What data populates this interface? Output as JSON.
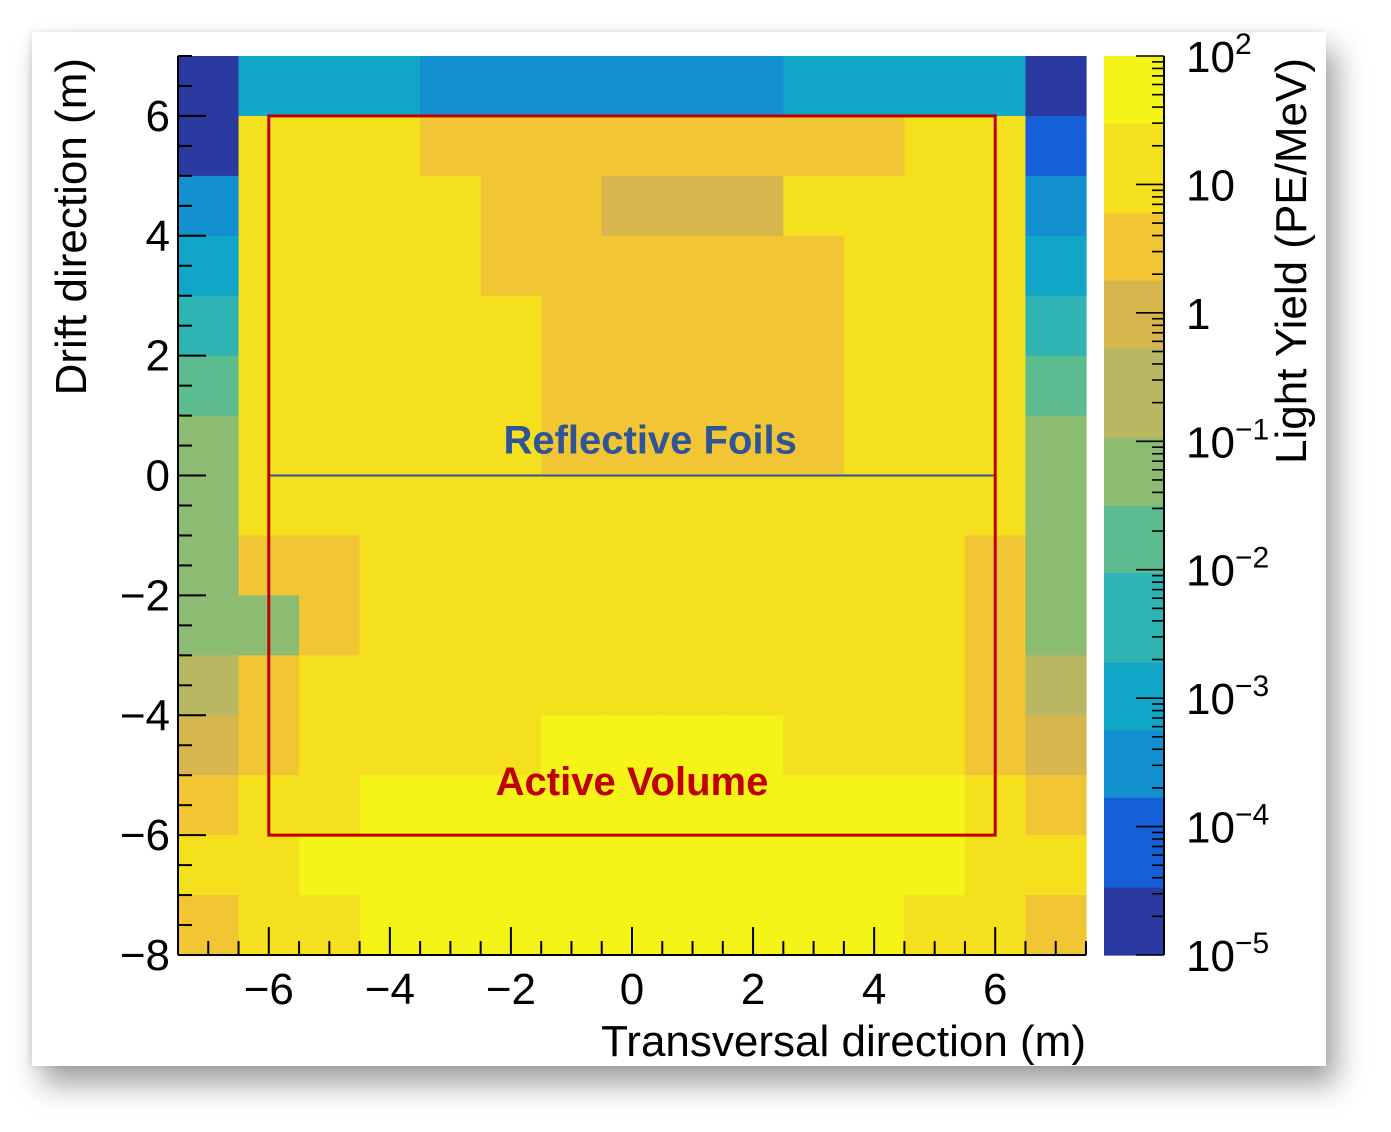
{
  "chart_data": {
    "type": "heatmap",
    "xlabel": "Transversal direction (m)",
    "ylabel": "Drift direction (m)",
    "zlabel": "Light Yield (PE/MeV)",
    "xlim": [
      -7.5,
      7.5
    ],
    "ylim": [
      -8,
      7
    ],
    "x_ticks": [
      -6,
      -4,
      -2,
      0,
      2,
      4,
      6
    ],
    "x_tick_labels": [
      "−6",
      "−4",
      "−2",
      "0",
      "2",
      "4",
      "6"
    ],
    "y_ticks": [
      -8,
      -6,
      -4,
      -2,
      0,
      2,
      4,
      6
    ],
    "y_tick_labels": [
      "−8",
      "−6",
      "−4",
      "−2",
      "0",
      "2",
      "4",
      "6"
    ],
    "z_scale": "log",
    "zlim": [
      1e-05,
      100
    ],
    "z_ticks": [
      {
        "value": 100,
        "base": "10",
        "exp": "2"
      },
      {
        "value": 10,
        "base": "10",
        "exp": ""
      },
      {
        "value": 1,
        "base": "1",
        "exp": ""
      },
      {
        "value": 0.1,
        "base": "10",
        "exp": "−1"
      },
      {
        "value": 0.01,
        "base": "10",
        "exp": "−2"
      },
      {
        "value": 0.001,
        "base": "10",
        "exp": "−3"
      },
      {
        "value": 0.0001,
        "base": "10",
        "exp": "−4"
      },
      {
        "value": 1e-05,
        "base": "10",
        "exp": "−5"
      }
    ],
    "colormap": [
      "#2a3aa0",
      "#1560d8",
      "#1290d0",
      "#0fa6c8",
      "#2fb4b4",
      "#5cbc90",
      "#8cbc72",
      "#b8b862",
      "#d8b64e",
      "#f2c534",
      "#f4e01c",
      "#f5f418"
    ],
    "x_bin_edges": [
      -7.5,
      -6.5,
      -5.5,
      -4.5,
      -3.5,
      -2.5,
      -1.5,
      -0.5,
      0.5,
      1.5,
      2.5,
      3.5,
      4.5,
      5.5,
      6.5,
      7.5
    ],
    "y_bin_edges": [
      -8,
      -7,
      -6,
      -5,
      -4,
      -3,
      -2,
      -1,
      0,
      1,
      2,
      3,
      4,
      5,
      6,
      7
    ],
    "z_log10_rows_top_to_bottom": [
      [
        -4.8,
        -3.1,
        -3.1,
        -3.1,
        -3.6,
        -3.6,
        -3.6,
        -3.6,
        -3.6,
        -3.6,
        -3.1,
        -3.1,
        -3.1,
        -3.1,
        -4.8
      ],
      [
        -4.8,
        1.0,
        1.0,
        1.0,
        0.7,
        0.3,
        0.3,
        0.3,
        0.3,
        0.3,
        0.3,
        0.7,
        1.0,
        1.0,
        -4.1
      ],
      [
        -3.4,
        1.0,
        1.0,
        1.0,
        1.0,
        0.3,
        0.3,
        0.0,
        0.0,
        0.0,
        1.0,
        1.0,
        1.0,
        1.0,
        -3.4
      ],
      [
        -3.2,
        1.0,
        1.0,
        1.3,
        1.0,
        0.7,
        0.7,
        0.7,
        0.7,
        0.7,
        0.7,
        1.0,
        1.0,
        1.0,
        -3.2
      ],
      [
        -2.5,
        1.0,
        1.0,
        1.3,
        1.0,
        1.0,
        0.7,
        0.7,
        0.7,
        0.7,
        0.7,
        1.0,
        1.3,
        1.0,
        -2.5
      ],
      [
        -2.0,
        1.0,
        1.0,
        1.3,
        1.0,
        1.0,
        0.7,
        0.7,
        0.7,
        0.7,
        0.7,
        1.0,
        1.3,
        1.0,
        -2.0
      ],
      [
        -1.0,
        1.0,
        1.0,
        1.3,
        1.0,
        1.0,
        0.7,
        0.7,
        0.7,
        0.7,
        0.7,
        1.0,
        1.3,
        1.0,
        -1.0
      ],
      [
        -1.5,
        1.0,
        1.0,
        1.3,
        1.0,
        1.0,
        1.0,
        1.0,
        1.0,
        1.0,
        1.0,
        1.0,
        1.3,
        1.0,
        -1.5
      ],
      [
        -1.0,
        0.7,
        0.7,
        1.0,
        1.0,
        1.0,
        1.0,
        1.0,
        1.0,
        1.0,
        1.0,
        1.0,
        1.0,
        0.7,
        -1.0
      ],
      [
        -1.0,
        -1.0,
        0.7,
        1.0,
        1.0,
        1.0,
        1.0,
        1.0,
        1.0,
        1.0,
        1.0,
        1.0,
        1.0,
        0.7,
        -1.0
      ],
      [
        -0.7,
        0.7,
        1.0,
        1.0,
        1.3,
        1.3,
        1.3,
        1.3,
        1.3,
        1.3,
        1.3,
        1.3,
        1.0,
        0.7,
        -0.7
      ],
      [
        -0.3,
        0.7,
        1.0,
        1.3,
        1.3,
        1.3,
        1.6,
        1.6,
        1.6,
        1.6,
        1.3,
        1.3,
        1.3,
        0.7,
        -0.3
      ],
      [
        0.3,
        1.0,
        1.3,
        1.6,
        1.6,
        1.6,
        1.6,
        1.6,
        1.6,
        1.6,
        1.6,
        1.6,
        1.6,
        1.3,
        0.3
      ],
      [
        1.3,
        1.3,
        1.6,
        1.6,
        1.6,
        1.9,
        1.9,
        1.9,
        1.9,
        1.9,
        1.9,
        1.9,
        1.6,
        1.3,
        1.3
      ],
      [
        0.7,
        1.3,
        1.3,
        1.6,
        1.6,
        1.6,
        1.6,
        1.6,
        1.6,
        1.6,
        1.6,
        1.6,
        1.3,
        1.3,
        0.7
      ]
    ],
    "annotations": [
      {
        "text": "Reflective Foils",
        "color": "#2f5597",
        "region": {
          "x": [
            -6,
            6
          ],
          "y": [
            0,
            6
          ]
        },
        "label_at": {
          "x": 0.3,
          "y": 0.6
        }
      },
      {
        "text": "Active Volume",
        "color": "#c00000",
        "region": {
          "x": [
            -6,
            6
          ],
          "y": [
            -6,
            6
          ]
        },
        "label_at": {
          "x": 0,
          "y": -5.1
        }
      }
    ],
    "grid": false,
    "legend": "none"
  }
}
